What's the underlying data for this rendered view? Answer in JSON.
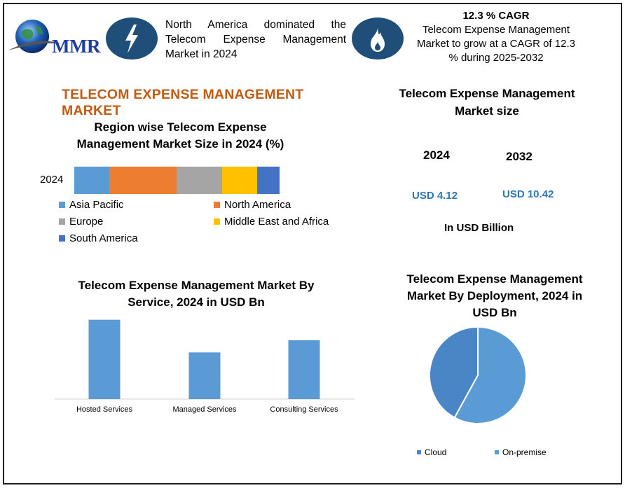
{
  "logo": {
    "text": "MMR"
  },
  "header": {
    "headline": "North America dominated the Telecom Expense Management Market in 2024",
    "cagr_title": "12.3 % CAGR",
    "cagr_text": "Telecom Expense Management Market to grow at a CAGR of 12.3 % during 2025-2032"
  },
  "main_title": "TELECOM EXPENSE MANAGEMENT MARKET",
  "market_size": {
    "title": "Telecom Expense Management Market size",
    "year1": "2024",
    "year2": "2032",
    "value1": "USD 4.12",
    "value2": "USD 10.42",
    "unit": "In USD Billion"
  },
  "colors": {
    "asia_pacific": "#5b9bd5",
    "north_america": "#ed7d31",
    "europe": "#a5a5a5",
    "mea": "#ffc000",
    "south_america": "#4472c4",
    "service_bar": "#5b9bd5",
    "cloud": "#4a86c5",
    "on_premise": "#5b9bd5"
  },
  "chart_data": [
    {
      "type": "bar",
      "orientation": "horizontal-stacked",
      "title": "Region wise Telecom Expense Management Market Size in 2024 (%)",
      "categories": [
        "2024"
      ],
      "series": [
        {
          "name": "Asia Pacific",
          "values": [
            17
          ]
        },
        {
          "name": "North America",
          "values": [
            33
          ]
        },
        {
          "name": "Europe",
          "values": [
            22
          ]
        },
        {
          "name": "Middle East and Africa",
          "values": [
            17
          ]
        },
        {
          "name": "South America",
          "values": [
            11
          ]
        }
      ],
      "legend": "bottom"
    },
    {
      "type": "bar",
      "title": "Telecom Expense Management Market By Service, 2024 in USD Bn",
      "categories": [
        "Hosted Services",
        "Managed Services",
        "Consulting Services"
      ],
      "values": [
        1.7,
        1.0,
        1.26
      ],
      "ylim": [
        0,
        1.8
      ],
      "grid": false
    },
    {
      "type": "pie",
      "title": "Telecom Expense Management Market By Deployment, 2024 in USD Bn",
      "labels": [
        "Cloud",
        "On-premise"
      ],
      "values": [
        42,
        58
      ],
      "legend": "bottom"
    }
  ]
}
